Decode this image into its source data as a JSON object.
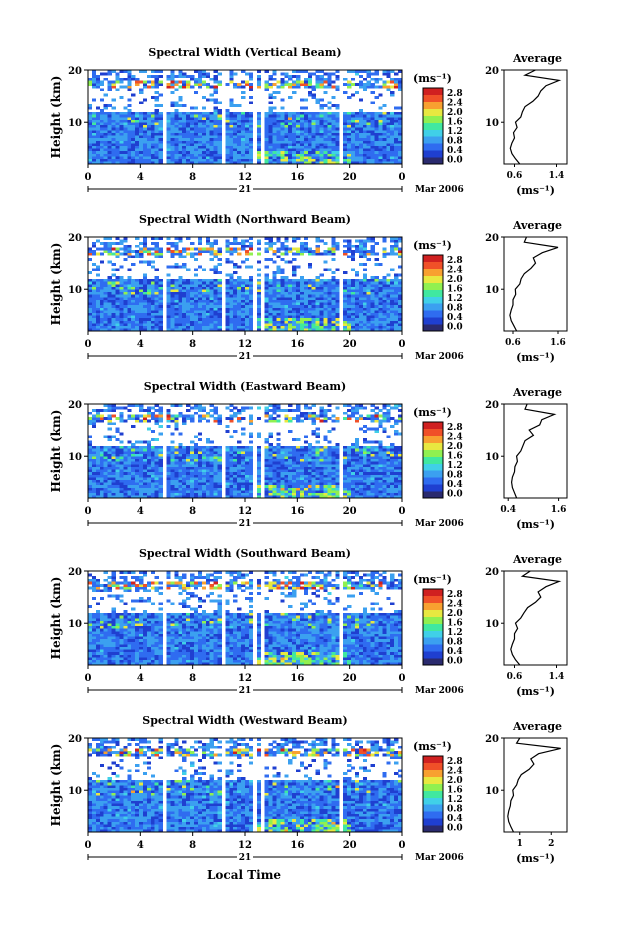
{
  "figure": {
    "date_label": "Mar 2006",
    "day_label": "21",
    "xaxis_title": "Local Time",
    "ylabel": "Height (km)",
    "colorbar_unit": "(ms⁻¹)",
    "avg_title": "Average",
    "avg_xlabel": "(ms⁻¹)",
    "colorbar_ticks": [
      "0.0",
      "0.4",
      "0.8",
      "1.2",
      "1.6",
      "2.0",
      "2.4",
      "2.8"
    ],
    "colors": {
      "scale": [
        "#2a2a6e",
        "#1f3fd0",
        "#2f6cf0",
        "#3ba0f0",
        "#40d0e8",
        "#40e8a0",
        "#90f050",
        "#e8e840",
        "#f8a030",
        "#f05028",
        "#d02020"
      ],
      "gap": "#ffffff"
    }
  },
  "chart_data": [
    {
      "type": "heatmap",
      "title": "Spectral Width (Vertical Beam)",
      "x_range": [
        0,
        24
      ],
      "x_ticks": [
        "0",
        "4",
        "8",
        "12",
        "16",
        "20",
        "0"
      ],
      "y_range": [
        2,
        20
      ],
      "y_ticks": [
        "10",
        "20"
      ],
      "colorbar_range": [
        0,
        3.0
      ],
      "data_gaps_hours": [
        5.8,
        10.3,
        12.7,
        13.3,
        19.3
      ],
      "avg_profile": {
        "x_range": [
          0.4,
          1.6
        ],
        "x_ticks": [
          "0.6",
          "1.4"
        ],
        "y_ticks": [
          "10",
          "20"
        ],
        "height_km": [
          2,
          3,
          4,
          5,
          6,
          7,
          8,
          9,
          10,
          11,
          12,
          13,
          14,
          15,
          16,
          17,
          18,
          19,
          20
        ],
        "width_ms": [
          0.7,
          0.62,
          0.55,
          0.52,
          0.55,
          0.6,
          0.58,
          0.65,
          0.62,
          0.72,
          0.75,
          0.8,
          0.95,
          1.05,
          1.1,
          1.2,
          1.45,
          0.8,
          1.0
        ]
      }
    },
    {
      "type": "heatmap",
      "title": "Spectral Width (Northward Beam)",
      "x_range": [
        0,
        24
      ],
      "x_ticks": [
        "0",
        "4",
        "8",
        "12",
        "16",
        "20",
        "0"
      ],
      "y_range": [
        2,
        20
      ],
      "y_ticks": [
        "10",
        "20"
      ],
      "colorbar_range": [
        0,
        3.0
      ],
      "data_gaps_hours": [
        5.8,
        10.3,
        12.7,
        13.3,
        19.3
      ],
      "avg_profile": {
        "x_range": [
          0.4,
          1.8
        ],
        "x_ticks": [
          "0.6",
          "1.6"
        ],
        "y_ticks": [
          "10",
          "20"
        ],
        "height_km": [
          2,
          3,
          4,
          5,
          6,
          7,
          8,
          9,
          10,
          11,
          12,
          13,
          14,
          15,
          16,
          17,
          18,
          19,
          20
        ],
        "width_ms": [
          0.68,
          0.62,
          0.56,
          0.53,
          0.56,
          0.6,
          0.6,
          0.66,
          0.65,
          0.75,
          0.78,
          0.85,
          1.0,
          1.1,
          1.05,
          1.25,
          1.6,
          0.85,
          0.9
        ]
      }
    },
    {
      "type": "heatmap",
      "title": "Spectral Width (Eastward Beam)",
      "x_range": [
        0,
        24
      ],
      "x_ticks": [
        "0",
        "4",
        "8",
        "12",
        "16",
        "20",
        "0"
      ],
      "y_range": [
        2,
        20
      ],
      "y_ticks": [
        "10",
        "20"
      ],
      "colorbar_range": [
        0,
        3.0
      ],
      "data_gaps_hours": [
        5.8,
        10.3,
        12.7,
        13.3,
        19.3
      ],
      "avg_profile": {
        "x_range": [
          0.3,
          1.8
        ],
        "x_ticks": [
          "0.4",
          "1.6"
        ],
        "y_ticks": [
          "10",
          "20"
        ],
        "height_km": [
          2,
          3,
          4,
          5,
          6,
          7,
          8,
          9,
          10,
          11,
          12,
          13,
          14,
          15,
          16,
          17,
          18,
          19,
          20
        ],
        "width_ms": [
          0.6,
          0.55,
          0.5,
          0.48,
          0.5,
          0.55,
          0.56,
          0.62,
          0.6,
          0.7,
          0.75,
          0.8,
          1.0,
          0.9,
          1.15,
          1.2,
          1.5,
          0.8,
          0.85
        ]
      }
    },
    {
      "type": "heatmap",
      "title": "Spectral Width (Southward Beam)",
      "x_range": [
        0,
        24
      ],
      "x_ticks": [
        "0",
        "4",
        "8",
        "12",
        "16",
        "20",
        "0"
      ],
      "y_range": [
        2,
        20
      ],
      "y_ticks": [
        "10",
        "20"
      ],
      "colorbar_range": [
        0,
        3.0
      ],
      "data_gaps_hours": [
        5.8,
        10.3,
        12.7,
        13.3,
        19.3
      ],
      "avg_profile": {
        "x_range": [
          0.4,
          1.6
        ],
        "x_ticks": [
          "0.6",
          "1.4"
        ],
        "y_ticks": [
          "10",
          "20"
        ],
        "height_km": [
          2,
          3,
          4,
          5,
          6,
          7,
          8,
          9,
          10,
          11,
          12,
          13,
          14,
          15,
          16,
          17,
          18,
          19,
          20
        ],
        "width_ms": [
          0.7,
          0.62,
          0.56,
          0.53,
          0.56,
          0.6,
          0.6,
          0.66,
          0.62,
          0.72,
          0.78,
          0.85,
          1.0,
          1.1,
          1.05,
          1.2,
          1.45,
          0.75,
          0.9
        ]
      }
    },
    {
      "type": "heatmap",
      "title": "Spectral Width (Westward Beam)",
      "x_range": [
        0,
        24
      ],
      "x_ticks": [
        "0",
        "4",
        "8",
        "12",
        "16",
        "20",
        "0"
      ],
      "y_range": [
        2,
        20
      ],
      "y_ticks": [
        "10",
        "20"
      ],
      "colorbar_range": [
        0,
        3.0
      ],
      "data_gaps_hours": [
        5.8,
        10.3,
        12.7,
        13.3,
        19.3
      ],
      "avg_profile": {
        "x_range": [
          0.5,
          2.5
        ],
        "x_ticks": [
          "1",
          "2"
        ],
        "y_ticks": [
          "10",
          "20"
        ],
        "height_km": [
          2,
          3,
          4,
          5,
          6,
          7,
          8,
          9,
          10,
          11,
          12,
          13,
          14,
          15,
          16,
          17,
          18,
          19,
          20
        ],
        "width_ms": [
          0.8,
          0.72,
          0.65,
          0.62,
          0.65,
          0.7,
          0.72,
          0.8,
          0.78,
          0.9,
          0.95,
          1.05,
          1.3,
          1.45,
          1.35,
          1.6,
          2.3,
          0.9,
          1.0
        ]
      }
    }
  ]
}
